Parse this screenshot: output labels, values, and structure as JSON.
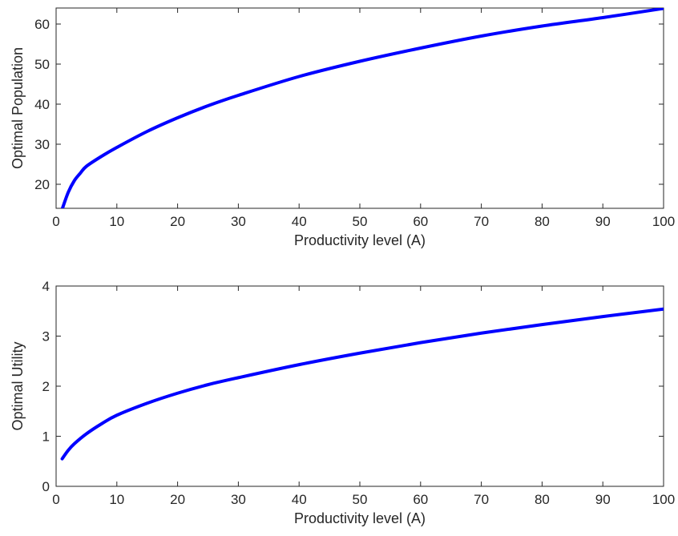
{
  "colors": {
    "series": "#0000ff",
    "axis": "#262626"
  },
  "chart_data": [
    {
      "type": "line",
      "title": "",
      "xlabel": "Productivity level (A)",
      "ylabel": "Optimal Population",
      "xlim": [
        0,
        100
      ],
      "ylim": [
        14,
        64
      ],
      "xticks": [
        0,
        10,
        20,
        30,
        40,
        50,
        60,
        70,
        80,
        90,
        100
      ],
      "yticks": [
        20,
        30,
        40,
        50,
        60
      ],
      "grid": false,
      "legend": "none",
      "series": [
        {
          "x": [
            1,
            2,
            3,
            4,
            5,
            7.5,
            10,
            15,
            20,
            25,
            30,
            40,
            50,
            60,
            70,
            80,
            90,
            100
          ],
          "y": [
            13.8,
            18.0,
            20.9,
            22.8,
            24.5,
            27.0,
            29.2,
            33.2,
            36.6,
            39.6,
            42.2,
            46.9,
            50.7,
            54.0,
            57.0,
            59.5,
            61.6,
            63.9
          ]
        }
      ]
    },
    {
      "type": "line",
      "title": "",
      "xlabel": "Productivity level (A)",
      "ylabel": "Optimal Utility",
      "xlim": [
        0,
        100
      ],
      "ylim": [
        0,
        4
      ],
      "xticks": [
        0,
        10,
        20,
        30,
        40,
        50,
        60,
        70,
        80,
        90,
        100
      ],
      "yticks": [
        0,
        1,
        2,
        3,
        4
      ],
      "grid": false,
      "legend": "none",
      "series": [
        {
          "x": [
            1,
            2,
            3,
            5,
            7.5,
            10,
            15,
            20,
            25,
            30,
            40,
            50,
            60,
            70,
            80,
            90,
            100
          ],
          "y": [
            0.55,
            0.72,
            0.85,
            1.05,
            1.25,
            1.42,
            1.66,
            1.86,
            2.03,
            2.17,
            2.43,
            2.66,
            2.87,
            3.06,
            3.23,
            3.39,
            3.54
          ]
        }
      ]
    }
  ]
}
